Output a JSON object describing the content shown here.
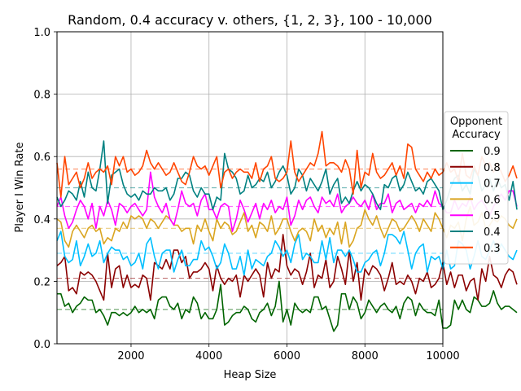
{
  "chart_data": {
    "type": "line",
    "title": "Random, 0.4 accuracy v. others, {1, 2, 3}, 100 - 10,000",
    "xlabel": "Heap Size",
    "ylabel": "Player I Win Rate",
    "xlim": [
      100,
      10000
    ],
    "ylim": [
      0.0,
      1.0
    ],
    "xticks": [
      2000,
      4000,
      6000,
      8000,
      10000
    ],
    "yticks": [
      0.0,
      0.2,
      0.4,
      0.6,
      0.8,
      1.0
    ],
    "xtick_labels": [
      "2000",
      "4000",
      "6000",
      "8000",
      "10000"
    ],
    "ytick_labels": [
      "0.0",
      "0.2",
      "0.4",
      "0.6",
      "0.8",
      "1.0"
    ],
    "grid": true,
    "legend_position": "outside-right",
    "legend_title_lines": [
      "Opponent",
      "Accuracy"
    ],
    "x_start": 100,
    "x_step": 100,
    "series": [
      {
        "name": "0.9",
        "color": "#006400",
        "mean": 0.11,
        "values": [
          0.16,
          0.16,
          0.12,
          0.13,
          0.1,
          0.12,
          0.13,
          0.15,
          0.14,
          0.14,
          0.1,
          0.11,
          0.09,
          0.06,
          0.1,
          0.1,
          0.09,
          0.1,
          0.09,
          0.1,
          0.12,
          0.1,
          0.11,
          0.1,
          0.11,
          0.08,
          0.14,
          0.15,
          0.15,
          0.12,
          0.11,
          0.13,
          0.08,
          0.11,
          0.1,
          0.15,
          0.13,
          0.08,
          0.1,
          0.08,
          0.08,
          0.11,
          0.19,
          0.06,
          0.07,
          0.09,
          0.1,
          0.1,
          0.12,
          0.11,
          0.08,
          0.07,
          0.1,
          0.11,
          0.13,
          0.09,
          0.12,
          0.2,
          0.07,
          0.11,
          0.06,
          0.13,
          0.11,
          0.1,
          0.11,
          0.1,
          0.15,
          0.15,
          0.11,
          0.12,
          0.08,
          0.04,
          0.06,
          0.16,
          0.16,
          0.11,
          0.15,
          0.13,
          0.08,
          0.1,
          0.14,
          0.12,
          0.1,
          0.12,
          0.13,
          0.11,
          0.1,
          0.12,
          0.08,
          0.13,
          0.15,
          0.14,
          0.09,
          0.13,
          0.11,
          0.1,
          0.1,
          0.09,
          0.14,
          0.05,
          0.05,
          0.06,
          0.14,
          0.11,
          0.14,
          0.11,
          0.1,
          0.15,
          0.14,
          0.12,
          0.12,
          0.13,
          0.17,
          0.13,
          0.11,
          0.12,
          0.12,
          0.11,
          0.1
        ]
      },
      {
        "name": "0.8",
        "color": "#8b0000",
        "mean": 0.21,
        "values": [
          0.25,
          0.26,
          0.28,
          0.17,
          0.18,
          0.16,
          0.23,
          0.22,
          0.23,
          0.22,
          0.2,
          0.17,
          0.14,
          0.29,
          0.18,
          0.24,
          0.25,
          0.18,
          0.22,
          0.18,
          0.19,
          0.18,
          0.22,
          0.21,
          0.14,
          0.26,
          0.25,
          0.24,
          0.27,
          0.24,
          0.3,
          0.3,
          0.26,
          0.28,
          0.21,
          0.23,
          0.23,
          0.24,
          0.26,
          0.24,
          0.17,
          0.25,
          0.21,
          0.19,
          0.21,
          0.2,
          0.22,
          0.15,
          0.22,
          0.2,
          0.22,
          0.24,
          0.22,
          0.15,
          0.26,
          0.21,
          0.24,
          0.23,
          0.35,
          0.25,
          0.22,
          0.24,
          0.23,
          0.19,
          0.23,
          0.29,
          0.18,
          0.22,
          0.21,
          0.27,
          0.18,
          0.2,
          0.28,
          0.24,
          0.19,
          0.3,
          0.2,
          0.26,
          0.14,
          0.24,
          0.22,
          0.25,
          0.24,
          0.22,
          0.17,
          0.21,
          0.26,
          0.19,
          0.2,
          0.19,
          0.22,
          0.2,
          0.16,
          0.21,
          0.2,
          0.23,
          0.18,
          0.19,
          0.21,
          0.26,
          0.19,
          0.23,
          0.18,
          0.22,
          0.22,
          0.17,
          0.2,
          0.21,
          0.14,
          0.24,
          0.2,
          0.28,
          0.22,
          0.21,
          0.18,
          0.22,
          0.24,
          0.23,
          0.19
        ]
      },
      {
        "name": "0.7",
        "color": "#00bfff",
        "mean": 0.29,
        "values": [
          0.33,
          0.36,
          0.28,
          0.26,
          0.27,
          0.33,
          0.25,
          0.28,
          0.32,
          0.28,
          0.29,
          0.33,
          0.26,
          0.29,
          0.31,
          0.3,
          0.3,
          0.27,
          0.28,
          0.25,
          0.26,
          0.29,
          0.24,
          0.32,
          0.34,
          0.28,
          0.24,
          0.29,
          0.3,
          0.3,
          0.23,
          0.27,
          0.3,
          0.25,
          0.25,
          0.27,
          0.27,
          0.33,
          0.3,
          0.31,
          0.28,
          0.24,
          0.26,
          0.32,
          0.29,
          0.24,
          0.24,
          0.28,
          0.22,
          0.3,
          0.24,
          0.27,
          0.26,
          0.25,
          0.28,
          0.29,
          0.33,
          0.31,
          0.28,
          0.3,
          0.26,
          0.32,
          0.35,
          0.27,
          0.29,
          0.28,
          0.26,
          0.26,
          0.33,
          0.27,
          0.34,
          0.26,
          0.3,
          0.3,
          0.28,
          0.3,
          0.27,
          0.23,
          0.23,
          0.26,
          0.27,
          0.29,
          0.3,
          0.25,
          0.29,
          0.35,
          0.35,
          0.34,
          0.32,
          0.36,
          0.3,
          0.24,
          0.29,
          0.31,
          0.32,
          0.23,
          0.28,
          0.27,
          0.28,
          0.24,
          0.3,
          0.24,
          0.25,
          0.33,
          0.32,
          0.3,
          0.24,
          0.28,
          0.33,
          0.28,
          0.27,
          0.3,
          0.33,
          0.29,
          0.32,
          0.3,
          0.28,
          0.27,
          0.3
        ]
      },
      {
        "name": "0.6",
        "color": "#daa520",
        "mean": 0.37,
        "values": [
          0.4,
          0.39,
          0.33,
          0.31,
          0.36,
          0.38,
          0.36,
          0.34,
          0.37,
          0.38,
          0.36,
          0.37,
          0.32,
          0.34,
          0.33,
          0.37,
          0.36,
          0.39,
          0.37,
          0.41,
          0.4,
          0.41,
          0.4,
          0.37,
          0.4,
          0.39,
          0.37,
          0.39,
          0.41,
          0.4,
          0.38,
          0.38,
          0.36,
          0.37,
          0.37,
          0.32,
          0.38,
          0.36,
          0.4,
          0.36,
          0.33,
          0.4,
          0.37,
          0.39,
          0.38,
          0.35,
          0.36,
          0.39,
          0.42,
          0.36,
          0.38,
          0.34,
          0.39,
          0.38,
          0.36,
          0.41,
          0.35,
          0.37,
          0.4,
          0.4,
          0.36,
          0.33,
          0.36,
          0.37,
          0.36,
          0.33,
          0.4,
          0.36,
          0.38,
          0.34,
          0.37,
          0.35,
          0.39,
          0.32,
          0.39,
          0.31,
          0.33,
          0.37,
          0.38,
          0.43,
          0.4,
          0.38,
          0.41,
          0.37,
          0.34,
          0.37,
          0.4,
          0.39,
          0.36,
          0.37,
          0.39,
          0.41,
          0.39,
          0.36,
          0.4,
          0.38,
          0.36,
          0.42,
          0.4,
          0.37,
          0.34,
          0.38,
          0.37,
          0.39,
          0.33,
          0.4,
          0.44,
          0.38,
          0.39,
          0.42,
          0.37,
          0.38,
          0.4,
          0.39,
          0.41,
          0.4,
          0.38,
          0.37,
          0.4
        ]
      },
      {
        "name": "0.5",
        "color": "#ff00ff",
        "mean": 0.44,
        "values": [
          0.44,
          0.47,
          0.41,
          0.37,
          0.39,
          0.43,
          0.46,
          0.44,
          0.4,
          0.45,
          0.37,
          0.44,
          0.41,
          0.46,
          0.43,
          0.38,
          0.45,
          0.44,
          0.42,
          0.44,
          0.45,
          0.43,
          0.41,
          0.43,
          0.55,
          0.47,
          0.44,
          0.42,
          0.45,
          0.4,
          0.38,
          0.43,
          0.49,
          0.45,
          0.44,
          0.45,
          0.41,
          0.46,
          0.48,
          0.43,
          0.43,
          0.4,
          0.44,
          0.45,
          0.44,
          0.36,
          0.4,
          0.46,
          0.43,
          0.39,
          0.42,
          0.45,
          0.4,
          0.45,
          0.43,
          0.46,
          0.42,
          0.44,
          0.43,
          0.47,
          0.38,
          0.41,
          0.46,
          0.43,
          0.46,
          0.47,
          0.44,
          0.42,
          0.47,
          0.45,
          0.46,
          0.44,
          0.48,
          0.42,
          0.44,
          0.45,
          0.47,
          0.45,
          0.44,
          0.46,
          0.43,
          0.48,
          0.43,
          0.45,
          0.45,
          0.48,
          0.42,
          0.45,
          0.46,
          0.43,
          0.44,
          0.45,
          0.42,
          0.45,
          0.44,
          0.46,
          0.44,
          0.49,
          0.45,
          0.44,
          0.42,
          0.42,
          0.46,
          0.43,
          0.45,
          0.44,
          0.47,
          0.43,
          0.45,
          0.46,
          0.44,
          0.41,
          0.44,
          0.46,
          0.48,
          0.46,
          0.49,
          0.49,
          0.44
        ]
      },
      {
        "name": "0.4",
        "color": "#008080",
        "mean": 0.5,
        "values": [
          0.47,
          0.44,
          0.46,
          0.49,
          0.48,
          0.46,
          0.52,
          0.47,
          0.55,
          0.5,
          0.49,
          0.56,
          0.65,
          0.45,
          0.54,
          0.55,
          0.56,
          0.51,
          0.48,
          0.47,
          0.48,
          0.46,
          0.49,
          0.48,
          0.48,
          0.5,
          0.49,
          0.49,
          0.5,
          0.46,
          0.48,
          0.53,
          0.53,
          0.55,
          0.54,
          0.49,
          0.47,
          0.5,
          0.48,
          0.48,
          0.43,
          0.47,
          0.46,
          0.61,
          0.56,
          0.55,
          0.53,
          0.48,
          0.49,
          0.54,
          0.5,
          0.51,
          0.53,
          0.52,
          0.55,
          0.5,
          0.52,
          0.55,
          0.57,
          0.54,
          0.48,
          0.5,
          0.56,
          0.54,
          0.49,
          0.53,
          0.51,
          0.49,
          0.52,
          0.56,
          0.48,
          0.51,
          0.53,
          0.45,
          0.47,
          0.45,
          0.49,
          0.52,
          0.49,
          0.51,
          0.5,
          0.48,
          0.45,
          0.43,
          0.51,
          0.5,
          0.53,
          0.54,
          0.49,
          0.51,
          0.55,
          0.52,
          0.49,
          0.5,
          0.48,
          0.52,
          0.53,
          0.51,
          0.49,
          0.43,
          0.46,
          0.5,
          0.53,
          0.54,
          0.49,
          0.51,
          0.48,
          0.56,
          0.54,
          0.49,
          0.51,
          0.53,
          0.49,
          0.53,
          0.5,
          0.51,
          0.46,
          0.52,
          0.43
        ]
      },
      {
        "name": "0.3",
        "color": "#ff4500",
        "mean": 0.56,
        "values": [
          0.58,
          0.47,
          0.6,
          0.51,
          0.53,
          0.55,
          0.5,
          0.53,
          0.58,
          0.53,
          0.55,
          0.56,
          0.55,
          0.57,
          0.51,
          0.6,
          0.57,
          0.6,
          0.55,
          0.56,
          0.54,
          0.55,
          0.57,
          0.62,
          0.58,
          0.56,
          0.58,
          0.56,
          0.54,
          0.55,
          0.58,
          0.55,
          0.52,
          0.51,
          0.55,
          0.6,
          0.57,
          0.56,
          0.57,
          0.54,
          0.57,
          0.6,
          0.5,
          0.55,
          0.56,
          0.53,
          0.55,
          0.56,
          0.55,
          0.55,
          0.53,
          0.58,
          0.52,
          0.56,
          0.57,
          0.6,
          0.53,
          0.52,
          0.53,
          0.55,
          0.65,
          0.55,
          0.52,
          0.54,
          0.56,
          0.58,
          0.57,
          0.61,
          0.68,
          0.57,
          0.58,
          0.58,
          0.57,
          0.55,
          0.59,
          0.56,
          0.48,
          0.62,
          0.5,
          0.55,
          0.54,
          0.61,
          0.55,
          0.53,
          0.54,
          0.56,
          0.58,
          0.54,
          0.57,
          0.53,
          0.64,
          0.63,
          0.56,
          0.54,
          0.52,
          0.55,
          0.53,
          0.56,
          0.54,
          0.55,
          0.58,
          0.55,
          0.56,
          0.52,
          0.61,
          0.54,
          0.53,
          0.57,
          0.54,
          0.6,
          0.57,
          0.58,
          0.55,
          0.58,
          0.55,
          0.52,
          0.54,
          0.57,
          0.53
        ]
      }
    ]
  }
}
